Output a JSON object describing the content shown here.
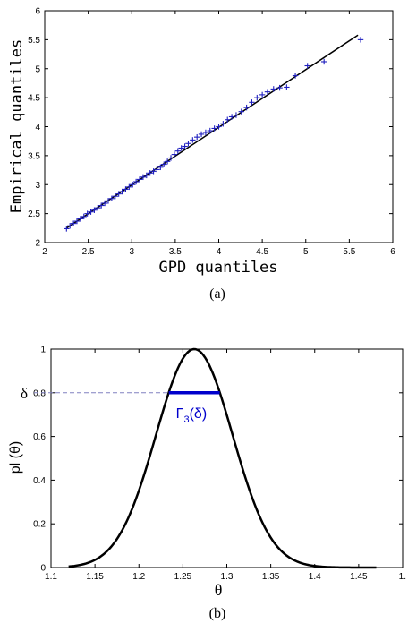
{
  "chart_data": [
    {
      "type": "scatter",
      "caption": "(a)",
      "xlabel": "GPD quantiles",
      "ylabel": "Empirical quantiles",
      "xlim": [
        2,
        6
      ],
      "ylim": [
        2,
        6
      ],
      "xticks": [
        "2",
        "2.5",
        "3",
        "3.5",
        "4",
        "4.5",
        "5",
        "5.5",
        "6"
      ],
      "yticks": [
        "2",
        "2.5",
        "3",
        "3.5",
        "4",
        "4.5",
        "5",
        "5.5",
        "6"
      ],
      "marker": "+",
      "marker_color": "#1f1fbf",
      "line_color": "#000000",
      "reference_line": [
        [
          2.25,
          2.25
        ],
        [
          5.6,
          5.58
        ]
      ],
      "series": [
        {
          "values": [
            [
              2.25,
              2.24
            ],
            [
              2.29,
              2.29
            ],
            [
              2.33,
              2.33
            ],
            [
              2.37,
              2.37
            ],
            [
              2.41,
              2.41
            ],
            [
              2.45,
              2.45
            ],
            [
              2.49,
              2.5
            ],
            [
              2.53,
              2.53
            ],
            [
              2.57,
              2.56
            ],
            [
              2.61,
              2.6
            ],
            [
              2.65,
              2.64
            ],
            [
              2.69,
              2.68
            ],
            [
              2.73,
              2.72
            ],
            [
              2.77,
              2.76
            ],
            [
              2.81,
              2.8
            ],
            [
              2.85,
              2.84
            ],
            [
              2.89,
              2.88
            ],
            [
              2.93,
              2.92
            ],
            [
              2.97,
              2.96
            ],
            [
              3.01,
              3.0
            ],
            [
              3.05,
              3.05
            ],
            [
              3.09,
              3.09
            ],
            [
              3.13,
              3.13
            ],
            [
              3.17,
              3.16
            ],
            [
              3.21,
              3.2
            ],
            [
              3.25,
              3.23
            ],
            [
              3.29,
              3.26
            ],
            [
              3.33,
              3.3
            ],
            [
              3.37,
              3.35
            ],
            [
              3.41,
              3.4
            ],
            [
              3.45,
              3.46
            ],
            [
              3.49,
              3.52
            ],
            [
              3.53,
              3.58
            ],
            [
              3.57,
              3.63
            ],
            [
              3.61,
              3.66
            ],
            [
              3.65,
              3.71
            ],
            [
              3.7,
              3.77
            ],
            [
              3.75,
              3.82
            ],
            [
              3.8,
              3.87
            ],
            [
              3.85,
              3.9
            ],
            [
              3.9,
              3.93
            ],
            [
              3.95,
              3.97
            ],
            [
              4.0,
              4.0
            ],
            [
              4.05,
              4.05
            ],
            [
              4.1,
              4.12
            ],
            [
              4.15,
              4.17
            ],
            [
              4.2,
              4.2
            ],
            [
              4.26,
              4.26
            ],
            [
              4.32,
              4.33
            ],
            [
              4.38,
              4.42
            ],
            [
              4.44,
              4.5
            ],
            [
              4.5,
              4.55
            ],
            [
              4.56,
              4.6
            ],
            [
              4.63,
              4.65
            ],
            [
              4.7,
              4.67
            ],
            [
              4.78,
              4.68
            ],
            [
              4.88,
              4.88
            ],
            [
              5.02,
              5.05
            ],
            [
              5.21,
              5.12
            ],
            [
              5.63,
              5.5
            ]
          ]
        }
      ]
    },
    {
      "type": "line",
      "caption": "(b)",
      "xlabel": "θ",
      "ylabel": "pl (θ)",
      "xlim": [
        1.1,
        1.5
      ],
      "ylim": [
        0,
        1
      ],
      "xticks": [
        "1.1",
        "1.15",
        "1.2",
        "1.25",
        "1.3",
        "1.35",
        "1.4",
        "1.45",
        "1."
      ],
      "yticks": [
        "0",
        "0.2",
        "0.4",
        "0.6",
        "0.8",
        "1"
      ],
      "curve": {
        "mean": 1.263,
        "sd": 0.0436,
        "x_min": 1.12,
        "x_max": 1.47,
        "color": "#000000"
      },
      "delta_label": "δ",
      "delta_value": 0.8,
      "delta_color": "#1f1fbf",
      "interval": {
        "x_start": 1.234,
        "x_end": 1.292,
        "y": 0.8,
        "color": "#0000cc"
      },
      "interval_label": {
        "main": "Γ",
        "sub": "3",
        "arg": "(δ)"
      }
    }
  ]
}
